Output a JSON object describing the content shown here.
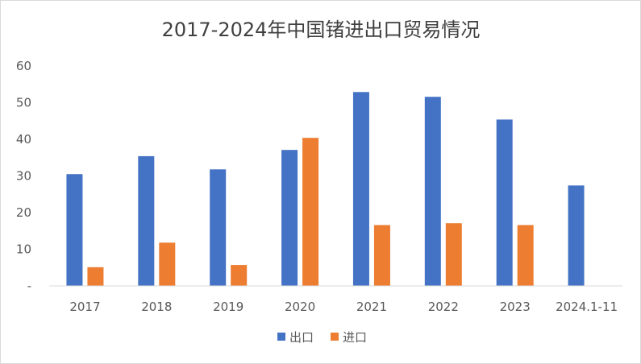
{
  "chart_data": {
    "type": "bar",
    "title": "2017-2024年中国锗进出口贸易情况",
    "categories": [
      "2017",
      "2018",
      "2019",
      "2020",
      "2021",
      "2022",
      "2023",
      "2024.1-11"
    ],
    "series": [
      {
        "name": "出口",
        "color": "#4472C4",
        "values": [
          30.5,
          35.4,
          31.8,
          37.1,
          52.9,
          51.6,
          45.4,
          27.4
        ]
      },
      {
        "name": "进口",
        "color": "#ED7D31",
        "values": [
          5.1,
          11.8,
          5.7,
          40.4,
          16.6,
          17.1,
          16.6,
          null
        ]
      }
    ],
    "ylim": [
      0,
      60
    ],
    "yticks": [
      0,
      10,
      20,
      30,
      40,
      50,
      60
    ],
    "ytick_labels": [
      "-",
      "10",
      "20",
      "30",
      "40",
      "50",
      "60"
    ],
    "grid": false,
    "legend": "bottom"
  }
}
